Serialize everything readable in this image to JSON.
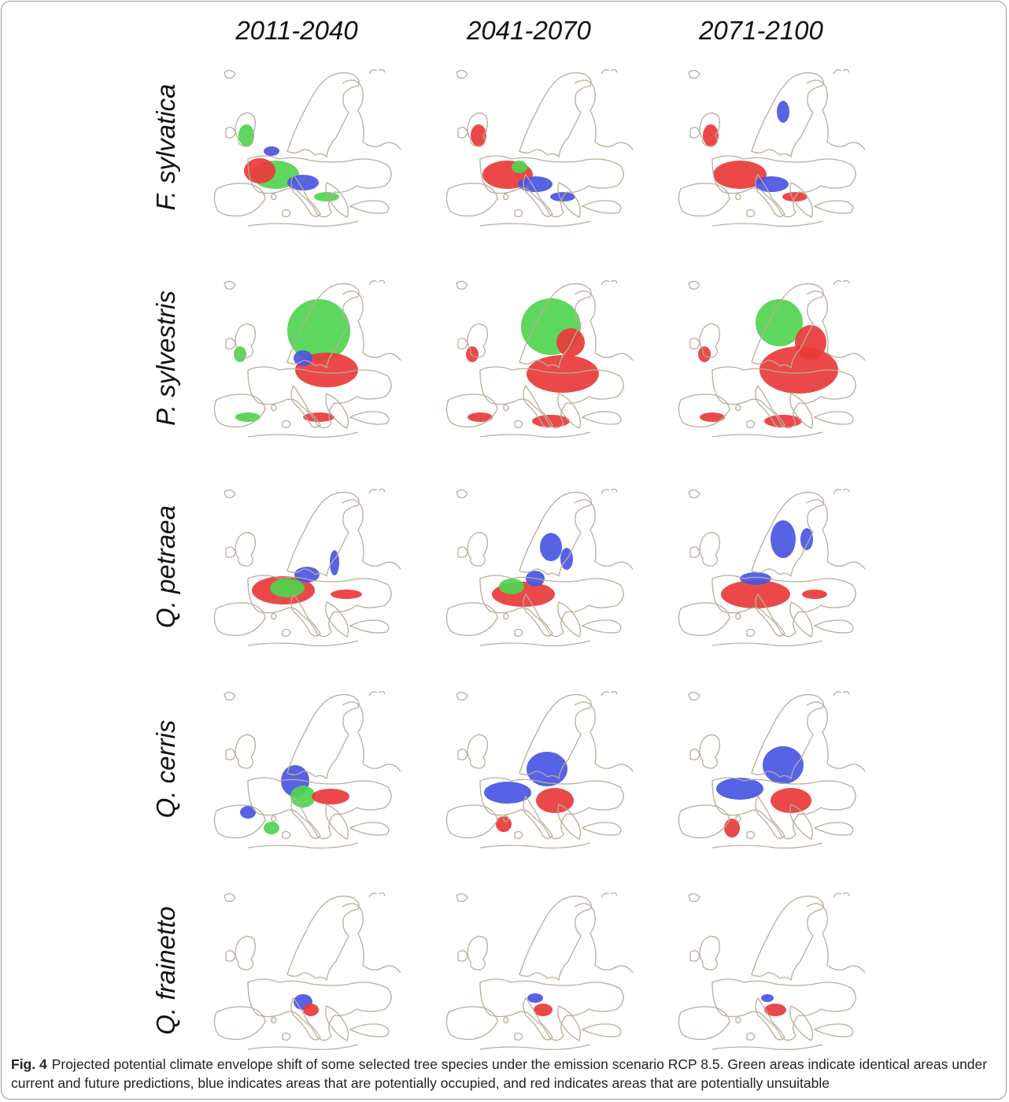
{
  "figure": {
    "columns": [
      "2011-2040",
      "2041-2070",
      "2071-2100"
    ],
    "rows": [
      "F. sylvatica",
      "P. sylvestris",
      "Q. petraea",
      "Q. cerris",
      "Q. frainetto"
    ],
    "caption": {
      "label": "Fig. 4",
      "text": "Projected potential climate envelope shift of some selected tree species under the emission scenario RCP 8.5. Green areas indicate identical areas under current and future predictions, blue indicates areas that are potentially occupied, and red indicates areas that are potentially unsuitable"
    }
  }
}
